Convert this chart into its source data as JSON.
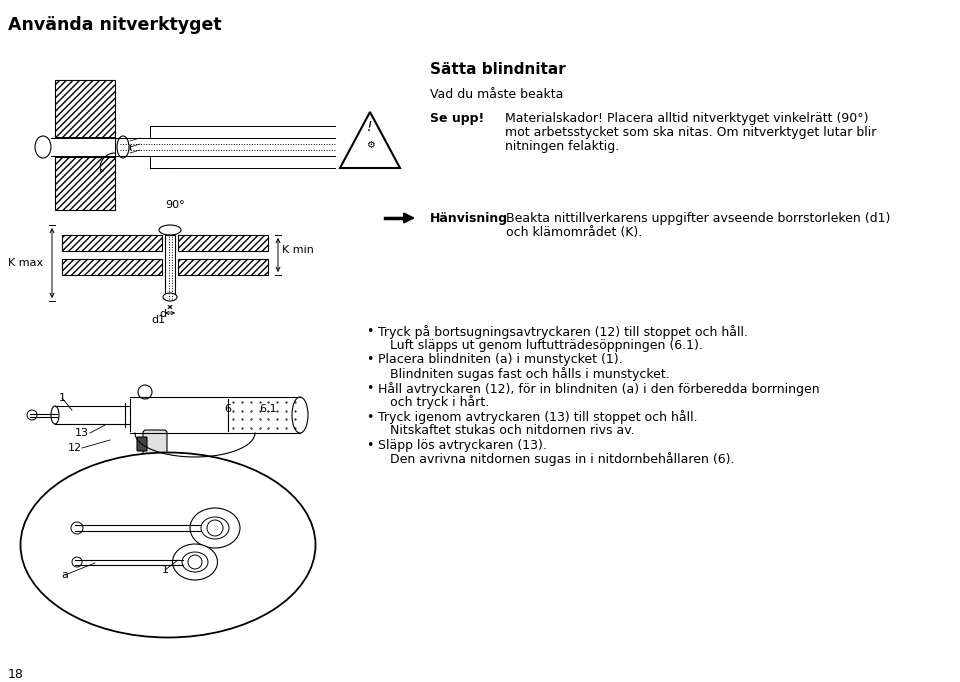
{
  "bg_color": "#ffffff",
  "page_title": "Använda nitverktyget",
  "section_title": "Sätta blindnitar",
  "subtitle": "Vad du måste beakta",
  "warning_label": "Se upp!",
  "warning_line1": "Materialskador! Placera alltid nitverktyget vinkelrätt (90°)",
  "warning_line2": "mot arbetsstycket som ska nitas. Om nitverktyget lutar blir",
  "warning_line3": "nitningen felaktig.",
  "hint_label": "Hänvisning",
  "hint_line1": "Beakta nittillverkarens uppgifter avseende borrstorleken (d1)",
  "hint_line2": "och klämområdet (K).",
  "b1l1": "Tryck på bortsugningsavtryckaren (12) till stoppet och håll.",
  "b1l2": "Luft släpps ut genom luftutträdesöppningen (6.1).",
  "b2l1": "Placera blindniten (a) i munstycket (1).",
  "b2l2": "Blindniten sugas fast och hålls i munstycket.",
  "b3l1": "Håll avtryckaren (12), för in blindniten (a) i den förberedda borrningen",
  "b3l2": "och tryck i hårt.",
  "b4l1": "Tryck igenom avtryckaren (13) till stoppet och håll.",
  "b4l2": "Nitskaftet stukas och nitdornen rivs av.",
  "b5l1": "Släpp lös avtryckaren (13).",
  "b5l2": "Den avrivna nitdornen sugas in i nitdornbehållaren (6).",
  "page_number": "18",
  "label_1a": "1",
  "label_6": "6",
  "label_6_1": "6.1",
  "label_13": "13",
  "label_12": "12",
  "label_a": "a",
  "label_1b": "1",
  "label_kmax": "K max",
  "label_kmin": "K min",
  "label_d": "d",
  "label_d1": "d1",
  "label_90": "90°",
  "fs_body": 9.0,
  "fs_title": 12.5,
  "fs_section": 11.0,
  "fs_label": 8.0
}
